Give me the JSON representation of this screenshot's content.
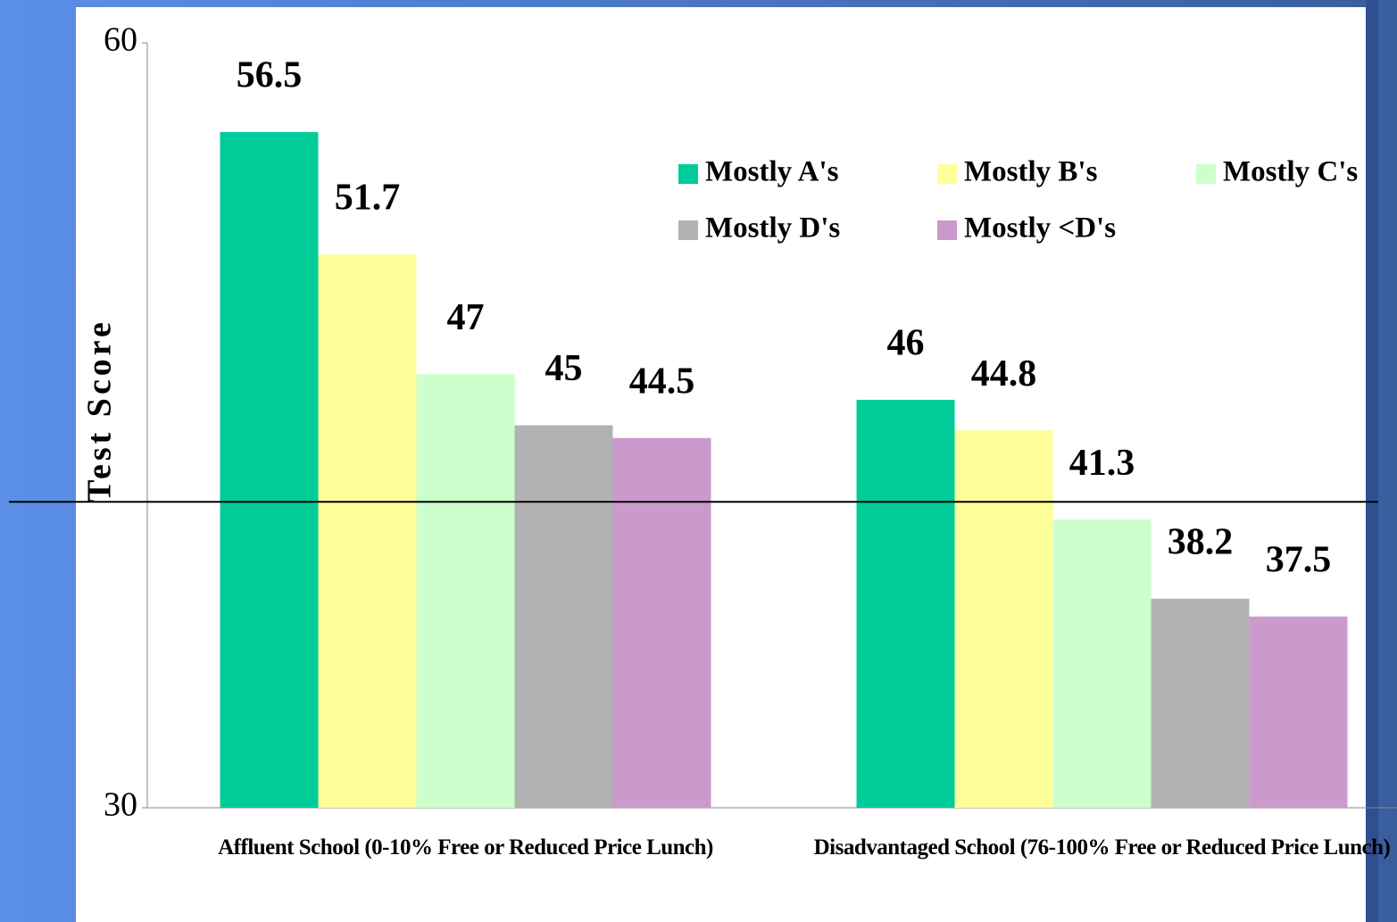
{
  "chart_data": {
    "type": "bar",
    "categories": [
      "Affluent School (0-10% Free or Reduced Price Lunch)",
      "Disadvantaged School (76-100% Free or Reduced Price Lunch)"
    ],
    "series": [
      {
        "name": "Mostly A's",
        "color": "#00cc99",
        "values": [
          56.5,
          46
        ]
      },
      {
        "name": "Mostly B's",
        "color": "#ffff99",
        "values": [
          51.7,
          44.8
        ]
      },
      {
        "name": "Mostly C's",
        "color": "#ccffcc",
        "values": [
          47,
          41.3
        ]
      },
      {
        "name": "Mostly D's",
        "color": "#b2b2b2",
        "values": [
          45,
          38.2
        ]
      },
      {
        "name": "Mostly <D's",
        "color": "#cc99cc",
        "values": [
          44.5,
          37.5
        ]
      }
    ],
    "ylabel": "Test Score",
    "ylim": [
      30,
      60
    ],
    "yticks": [
      30,
      60
    ],
    "reference_line": 42,
    "grid": false,
    "legend": "upper right"
  }
}
